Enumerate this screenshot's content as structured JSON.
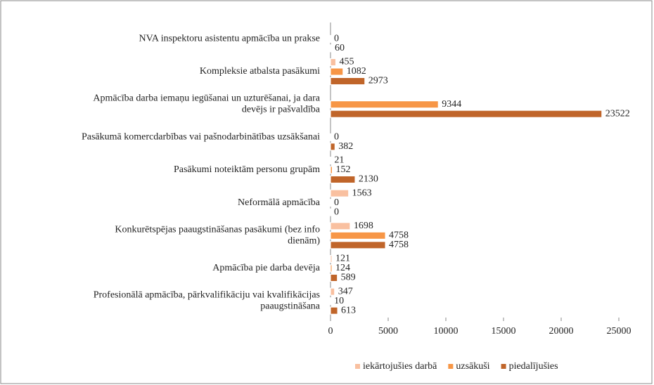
{
  "chart_data": {
    "type": "bar",
    "orientation": "horizontal",
    "categories": [
      "NVA inspektoru asistentu apmācība un prakse",
      "Kompleksie atbalsta pasākumi",
      "Apmācība darba iemaņu iegūšanai un uzturēšanai, ja dara\ndevējs ir pašvaldība",
      "Pasākumā komercdarbības vai pašnodarbinātības uzsākšanai",
      "Pasākumi noteiktām personu grupām",
      "Neformālā apmācība",
      "Konkurētspējas paaugstināšanas pasākumi (bez info\ndienām)",
      "Apmācība pie darba devēja",
      "Profesionālā apmācība, pārkvalifikāciju vai kvalifikācijas\npaaugstināšana"
    ],
    "series": [
      {
        "name": "iekārtojušies darbā",
        "color": "#f9c0a0",
        "values": [
          null,
          455,
          null,
          null,
          21,
          1563,
          1698,
          121,
          347
        ]
      },
      {
        "name": "uzsākuši",
        "color": "#f79646",
        "values": [
          0,
          1082,
          9344,
          0,
          152,
          0,
          4758,
          124,
          10
        ]
      },
      {
        "name": "piedalījušies",
        "color": "#c0652a",
        "values": [
          60,
          2973,
          23522,
          382,
          2130,
          0,
          4758,
          589,
          613
        ]
      }
    ],
    "xlim": [
      0,
      25000
    ],
    "xticks": [
      0,
      5000,
      10000,
      15000,
      20000,
      25000
    ],
    "legend": "bottom"
  }
}
